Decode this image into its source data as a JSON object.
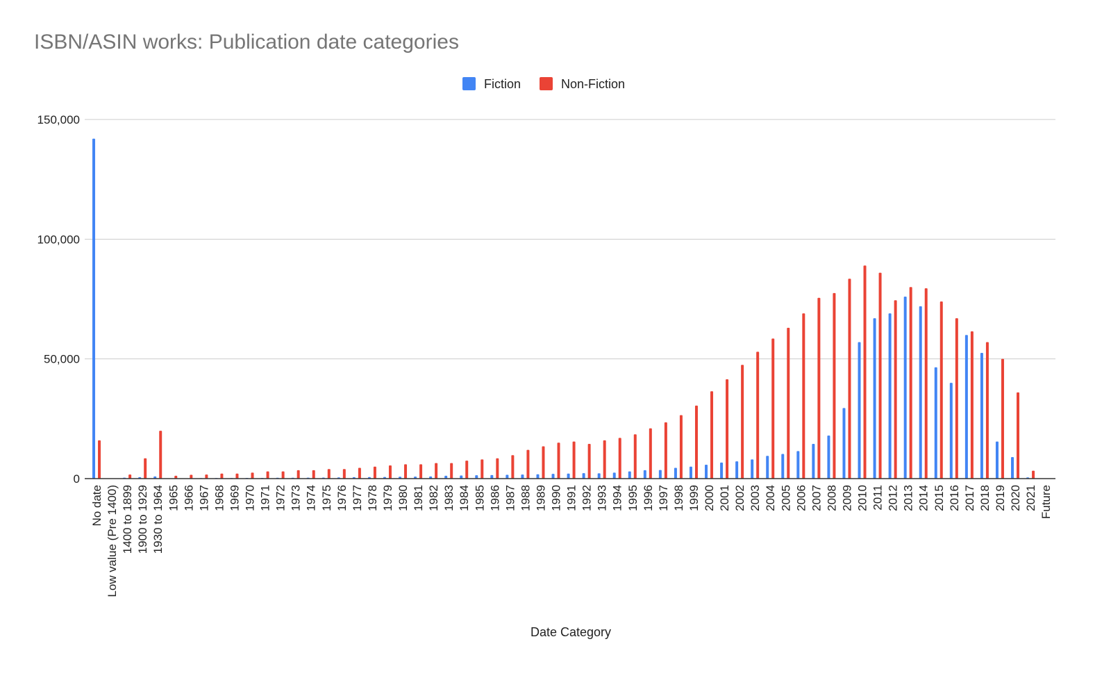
{
  "chart_data": {
    "type": "bar",
    "title": "ISBN/ASIN works: Publication date categories",
    "xlabel": "Date Category",
    "ylabel": "",
    "ylim": [
      0,
      150000
    ],
    "yticks": [
      0,
      50000,
      100000,
      150000
    ],
    "ytick_labels": [
      "0",
      "50,000",
      "100,000",
      "150,000"
    ],
    "grid": true,
    "legend_position": "top-center",
    "categories": [
      "No date",
      "Low value (Pre 1400)",
      "1400 to 1899",
      "1900 to 1929",
      "1930 to 1964",
      "1965",
      "1966",
      "1967",
      "1968",
      "1969",
      "1970",
      "1971",
      "1972",
      "1973",
      "1974",
      "1975",
      "1976",
      "1977",
      "1978",
      "1979",
      "1980",
      "1981",
      "1982",
      "1983",
      "1984",
      "1985",
      "1986",
      "1987",
      "1988",
      "1989",
      "1990",
      "1991",
      "1992",
      "1993",
      "1994",
      "1995",
      "1996",
      "1997",
      "1998",
      "1999",
      "2000",
      "2001",
      "2002",
      "2003",
      "2004",
      "2005",
      "2006",
      "2007",
      "2008",
      "2009",
      "2010",
      "2011",
      "2012",
      "2013",
      "2014",
      "2015",
      "2016",
      "2017",
      "2018",
      "2019",
      "2020",
      "2021",
      "Future"
    ],
    "series": [
      {
        "name": "Fiction",
        "color": "#4285f4",
        "values": [
          142000,
          0,
          400,
          600,
          900,
          100,
          150,
          200,
          250,
          250,
          300,
          300,
          350,
          350,
          400,
          450,
          500,
          600,
          650,
          700,
          800,
          850,
          900,
          1200,
          1300,
          1400,
          1500,
          1600,
          1700,
          1800,
          2000,
          2100,
          2300,
          2200,
          2500,
          3000,
          3500,
          3600,
          4500,
          5000,
          5800,
          6700,
          7200,
          8000,
          9500,
          10300,
          11500,
          14500,
          18000,
          29500,
          57000,
          67000,
          69000,
          76000,
          72000,
          46500,
          40000,
          60000,
          52500,
          15500,
          9000,
          500,
          0
        ]
      },
      {
        "name": "Non-Fiction",
        "color": "#ea4335",
        "values": [
          16000,
          0,
          1700,
          8500,
          20000,
          1200,
          1600,
          1700,
          2100,
          2100,
          2500,
          3000,
          3000,
          3500,
          3500,
          4000,
          4000,
          4500,
          5000,
          5500,
          6000,
          6000,
          6500,
          6500,
          7500,
          8000,
          8500,
          9800,
          12000,
          13500,
          15000,
          15500,
          14500,
          16000,
          17000,
          18500,
          21000,
          23500,
          26500,
          30500,
          36500,
          41500,
          47500,
          53000,
          58500,
          63000,
          69000,
          75500,
          77500,
          83500,
          89000,
          86000,
          74500,
          80000,
          79500,
          74000,
          67000,
          61500,
          57000,
          50000,
          36000,
          3300,
          0
        ]
      }
    ]
  }
}
